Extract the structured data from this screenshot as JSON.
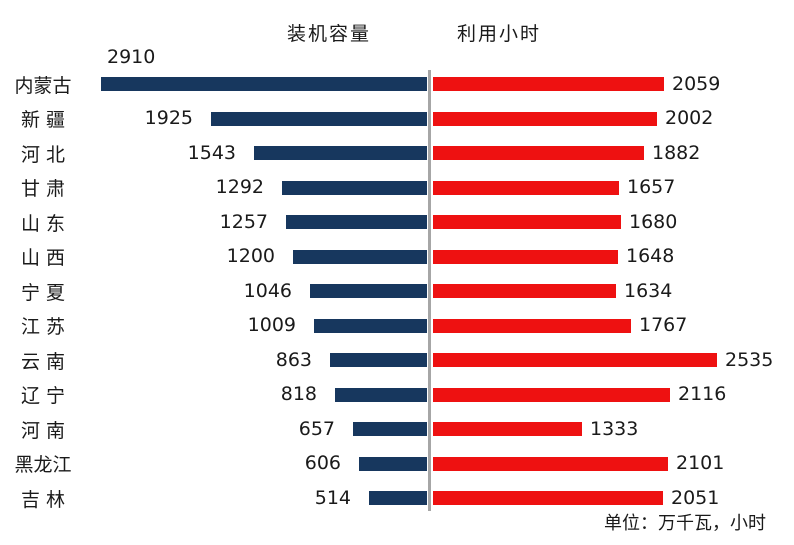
{
  "chart_data": {
    "type": "bar",
    "variant": "bidirectional-horizontal-tornado",
    "categories": [
      "内蒙古",
      "新 疆",
      "河 北",
      "甘 肃",
      "山 东",
      "山 西",
      "宁 夏",
      "江 苏",
      "云 南",
      "辽 宁",
      "河 南",
      "黑龙江",
      "吉 林"
    ],
    "series": [
      {
        "name": "装机容量",
        "side": "left",
        "color": "#17375e",
        "values": [
          2910,
          1925,
          1543,
          1292,
          1257,
          1200,
          1046,
          1009,
          863,
          818,
          657,
          606,
          514
        ]
      },
      {
        "name": "利用小时",
        "side": "right",
        "color": "#ee1111",
        "values": [
          2059,
          2002,
          1882,
          1657,
          1680,
          1648,
          1634,
          1767,
          2535,
          2116,
          1333,
          2101,
          2051
        ]
      }
    ],
    "footnote": "单位：万千瓦，小时",
    "title": "",
    "xlabel": "",
    "ylabel": "",
    "value_range": [
      0,
      2910
    ],
    "grid": false,
    "legend_position": "top-as-column-headers",
    "divider_color": "#a6a6a6",
    "text_color": "#1a1a1a",
    "data_labels": "outside-end"
  }
}
